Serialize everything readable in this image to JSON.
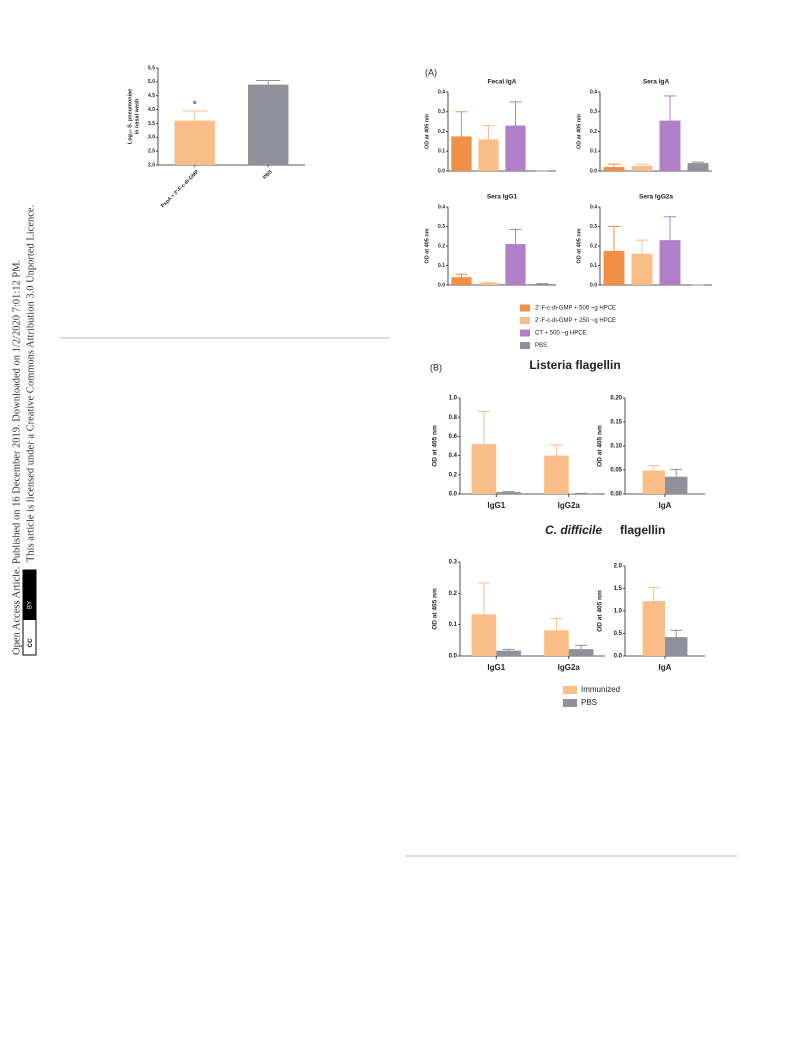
{
  "side_note": {
    "line1": "Open Access Article. Published on 16 December 2019. Downloaded on 1/2/2020 7:01:12 PM.",
    "line2": "This article is licensed under a Creative Commons Attribution 3.0 Unported Licence.",
    "badge": [
      "cc",
      "BY"
    ]
  },
  "panel_a_label": "(A)",
  "panel_b_label": "(B)",
  "listeria_title": "Listeria flagellin",
  "cdiff_title": {
    "italic": "C. difficile",
    "rest": "flagellin"
  },
  "legend_a": [
    {
      "name": "2′-F-c-di-GMP + 500 ~g HPCE",
      "color": "#f08f48"
    },
    {
      "name": "2′-F-c-di-GMP + 250 ~g HPCE",
      "color": "#f9bd88"
    },
    {
      "name": "CT + 500 ~g HPCE",
      "color": "#b17fc8"
    },
    {
      "name": "PBS",
      "color": "#8f9099"
    }
  ],
  "legend_b": [
    {
      "name": "Immunized",
      "color": "#f9bd88"
    },
    {
      "name": "PBS",
      "color": "#8f9099"
    }
  ],
  "chart_data": [
    {
      "type": "bar",
      "ylabel": [
        "Log₁₀ S. pneumoniae",
        "in nasal wash"
      ],
      "annotation": "*",
      "categories": [
        "PspA + 2′-F-c-di-GMP",
        "PBS"
      ],
      "values": [
        3.6,
        4.9
      ],
      "errors": [
        0.35,
        0.15
      ],
      "colors": [
        "#f9bd88",
        "#8f9099"
      ],
      "ylim": [
        2.0,
        5.5
      ],
      "yticks": [
        {
          "value": 2,
          "label": "2.0"
        },
        2.5,
        {
          "value": 3,
          "label": "3.0"
        },
        3.5,
        {
          "value": 4,
          "label": "4.0"
        },
        4.5,
        {
          "value": 5,
          "label": "5.0"
        },
        5.5
      ]
    },
    {
      "type": "bar",
      "title": "Fecal IgA",
      "ylabel": [
        "OD at 405 nm"
      ],
      "values": [
        0.175,
        0.16,
        0.23,
        0
      ],
      "errors": [
        0.125,
        0.07,
        0.12,
        0
      ],
      "colors": [
        "#f08f48",
        "#f9bd88",
        "#b17fc8",
        "#8f9099"
      ],
      "ylim": [
        0,
        0.4
      ],
      "yticks": [
        {
          "value": 0,
          "label": "0.0"
        },
        0.1,
        0.2,
        0.3,
        0.4
      ]
    },
    {
      "type": "bar",
      "title": "Sera IgA",
      "ylabel": [
        "OD at 405 nm"
      ],
      "values": [
        0.02,
        0.025,
        0.255,
        0.04
      ],
      "errors": [
        0.015,
        0.01,
        0.125,
        0.005
      ],
      "colors": [
        "#f08f48",
        "#f9bd88",
        "#b17fc8",
        "#8f9099"
      ],
      "ylim": [
        0,
        0.4
      ],
      "yticks": [
        {
          "value": 0,
          "label": "0.0"
        },
        0.1,
        0.2,
        0.3,
        0.4
      ]
    },
    {
      "type": "bar",
      "title": "Sera IgG1",
      "ylabel": [
        "OD at 405 nm"
      ],
      "values": [
        0.04,
        0.01,
        0.21,
        0.005
      ],
      "errors": [
        0.015,
        0.003,
        0.075,
        0.002
      ],
      "colors": [
        "#f08f48",
        "#f9bd88",
        "#b17fc8",
        "#8f9099"
      ],
      "ylim": [
        0,
        0.4
      ],
      "yticks": [
        {
          "value": 0,
          "label": "0.0"
        },
        0.1,
        0.2,
        0.3,
        0.4
      ]
    },
    {
      "type": "bar",
      "title": "Sera IgG2a",
      "ylabel": [
        "OD at 405 nm"
      ],
      "values": [
        0.175,
        0.16,
        0.23,
        0
      ],
      "errors": [
        0.125,
        0.07,
        0.12,
        0
      ],
      "colors": [
        "#f08f48",
        "#f9bd88",
        "#b17fc8",
        "#8f9099"
      ],
      "ylim": [
        0,
        0.4
      ],
      "yticks": [
        {
          "value": 0,
          "label": "0.0"
        },
        0.1,
        0.2,
        0.3,
        0.4
      ]
    },
    {
      "type": "bar",
      "ylabel": [
        "OD at 405 nm"
      ],
      "categories": [
        "IgG1",
        "IgG2a"
      ],
      "series": [
        {
          "color": "#f9bd88",
          "values": [
            0.52,
            0.4
          ],
          "errors": [
            0.34,
            0.11
          ]
        },
        {
          "color": "#8f9099",
          "values": [
            0.02,
            0.005
          ],
          "errors": [
            0.005,
            0.002
          ]
        }
      ],
      "ylim": [
        0,
        1.0
      ],
      "yticks": [
        {
          "value": 0,
          "label": "0.0"
        },
        0.2,
        0.4,
        0.6,
        0.8,
        {
          "value": 1,
          "label": "1.0"
        }
      ]
    },
    {
      "type": "bar",
      "ylabel": [
        "OD at 405 nm"
      ],
      "categories": [
        "IgA"
      ],
      "series": [
        {
          "color": "#f9bd88",
          "values": [
            0.049
          ],
          "errors": [
            0.01
          ]
        },
        {
          "color": "#8f9099",
          "values": [
            0.036
          ],
          "errors": [
            0.015
          ]
        }
      ],
      "ylim": [
        0,
        0.2
      ],
      "yticks": [
        {
          "value": 0,
          "label": "0.00"
        },
        0.05,
        {
          "value": 0.1,
          "label": "0.10"
        },
        0.15,
        {
          "value": 0.2,
          "label": "0.20"
        }
      ]
    },
    {
      "type": "bar",
      "ylabel": [
        "OD at 405 nm"
      ],
      "categories": [
        "IgG1",
        "IgG2a"
      ],
      "series": [
        {
          "color": "#f9bd88",
          "values": [
            0.133,
            0.082
          ],
          "errors": [
            0.1,
            0.038
          ]
        },
        {
          "color": "#8f9099",
          "values": [
            0.017,
            0.022
          ],
          "errors": [
            0.004,
            0.012
          ]
        }
      ],
      "ylim": [
        0,
        0.3
      ],
      "yticks": [
        {
          "value": 0,
          "label": "0.0"
        },
        0.1,
        0.2,
        0.3
      ]
    },
    {
      "type": "bar",
      "ylabel": [
        "OD at 405 nm"
      ],
      "categories": [
        "IgA"
      ],
      "series": [
        {
          "color": "#f9bd88",
          "values": [
            1.22
          ],
          "errors": [
            0.3
          ]
        },
        {
          "color": "#8f9099",
          "values": [
            0.42
          ],
          "errors": [
            0.15
          ]
        }
      ],
      "ylim": [
        0,
        2.0
      ],
      "yticks": [
        {
          "value": 0,
          "label": "0.0"
        },
        0.5,
        {
          "value": 1,
          "label": "1.0"
        },
        1.5,
        {
          "value": 2,
          "label": "2.0"
        }
      ]
    }
  ]
}
